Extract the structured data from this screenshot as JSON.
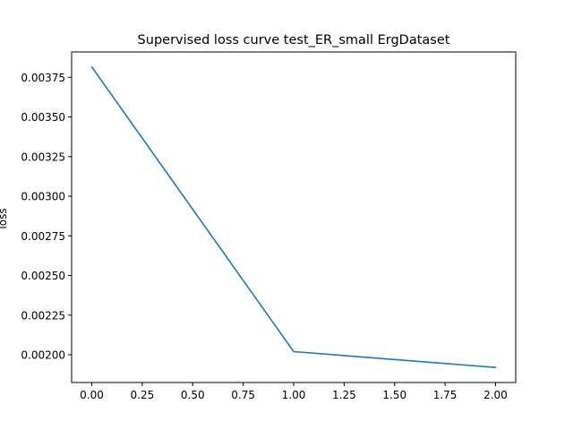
{
  "chart_data": {
    "type": "line",
    "title": "Supervised loss curve test_ER_small ErgDataset",
    "xlabel": "",
    "ylabel": "loss",
    "x": [
      0,
      1,
      2
    ],
    "series": [
      {
        "values": [
          0.003815,
          0.00202,
          0.00192
        ],
        "color": "#1f77b4"
      }
    ],
    "xlim": [
      -0.1,
      2.1
    ],
    "ylim": [
      0.001825,
      0.00391
    ],
    "xticks": [
      0.0,
      0.25,
      0.5,
      0.75,
      1.0,
      1.25,
      1.5,
      1.75,
      2.0
    ],
    "xtick_labels": [
      "0.00",
      "0.25",
      "0.50",
      "0.75",
      "1.00",
      "1.25",
      "1.50",
      "1.75",
      "2.00"
    ],
    "yticks": [
      0.002,
      0.00225,
      0.0025,
      0.00275,
      0.003,
      0.00325,
      0.0035,
      0.00375
    ],
    "ytick_labels": [
      "0.00200",
      "0.00225",
      "0.00250",
      "0.00275",
      "0.00300",
      "0.00325",
      "0.00350",
      "0.00375"
    ],
    "grid": false,
    "legend": false
  }
}
